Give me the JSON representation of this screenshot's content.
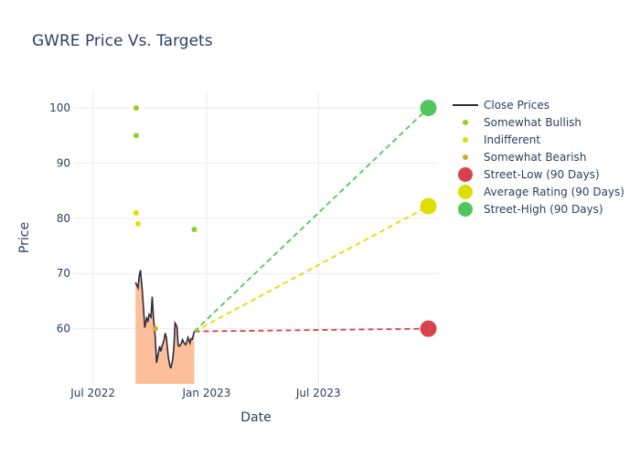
{
  "chart_data": {
    "type": "line",
    "title": "GWRE Price Vs. Targets",
    "xlabel": "Date",
    "ylabel": "Price",
    "xlim": [
      "2022-05-30",
      "2024-01-12"
    ],
    "ylim": [
      50,
      103
    ],
    "x_ticks": [
      {
        "date": "2022-07-01",
        "label": "Jul 2022"
      },
      {
        "date": "2023-01-01",
        "label": "Jan 2023"
      },
      {
        "date": "2023-07-01",
        "label": "Jul 2023"
      }
    ],
    "y_ticks": [
      60,
      70,
      80,
      90,
      100
    ],
    "grid": true,
    "legend_position": "right",
    "close_prices": {
      "name": "Close Prices",
      "color": "#2b2b3b",
      "fill_color": "#fcbf9a",
      "x": [
        "2022-09-08",
        "2022-09-12",
        "2022-09-14",
        "2022-09-16",
        "2022-09-19",
        "2022-09-21",
        "2022-09-23",
        "2022-09-26",
        "2022-09-28",
        "2022-09-30",
        "2022-10-03",
        "2022-10-05",
        "2022-10-07",
        "2022-10-10",
        "2022-10-12",
        "2022-10-14",
        "2022-10-17",
        "2022-10-19",
        "2022-10-21",
        "2022-10-24",
        "2022-10-26",
        "2022-10-28",
        "2022-10-31",
        "2022-11-02",
        "2022-11-04",
        "2022-11-07",
        "2022-11-09",
        "2022-11-11",
        "2022-11-14",
        "2022-11-16",
        "2022-11-18",
        "2022-11-21",
        "2022-11-23",
        "2022-11-25",
        "2022-11-28",
        "2022-11-30",
        "2022-12-02",
        "2022-12-05",
        "2022-12-07",
        "2022-12-09",
        "2022-12-12"
      ],
      "y": [
        68.4,
        67.4,
        69.6,
        70.6,
        66.8,
        63.5,
        60.2,
        61.9,
        61.4,
        62.6,
        62.1,
        65.8,
        62.0,
        58.3,
        53.8,
        55.0,
        56.8,
        55.9,
        56.9,
        57.9,
        59.2,
        58.4,
        54.9,
        53.6,
        52.8,
        54.3,
        56.5,
        61.0,
        60.4,
        57.0,
        56.8,
        57.3,
        58.0,
        57.5,
        57.1,
        57.6,
        58.4,
        57.4,
        58.2,
        58.1,
        59.5
      ]
    },
    "ratings": [
      {
        "name": "Somewhat Bullish",
        "color": "#8fd12a",
        "points": [
          {
            "x": "2022-09-09",
            "y": 100
          },
          {
            "x": "2022-09-09",
            "y": 95
          },
          {
            "x": "2022-12-12",
            "y": 78
          }
        ]
      },
      {
        "name": "Indifferent",
        "color": "#e0e000",
        "points": [
          {
            "x": "2022-09-09",
            "y": 81
          },
          {
            "x": "2022-09-12",
            "y": 79
          }
        ]
      },
      {
        "name": "Somewhat Bearish",
        "color": "#d4a82a",
        "points": [
          {
            "x": "2022-10-10",
            "y": 60
          }
        ]
      }
    ],
    "targets": [
      {
        "name": "Street-Low (90 Days)",
        "color": "#d9424d",
        "date": "2023-12-26",
        "value": 60
      },
      {
        "name": "Average Rating (90 Days)",
        "color": "#dede00",
        "date": "2023-12-26",
        "value": 82.2
      },
      {
        "name": "Street-High (90 Days)",
        "color": "#53c65b",
        "date": "2023-12-26",
        "value": 100
      }
    ],
    "projection_start": {
      "date": "2022-12-12",
      "value": 59.5
    }
  }
}
